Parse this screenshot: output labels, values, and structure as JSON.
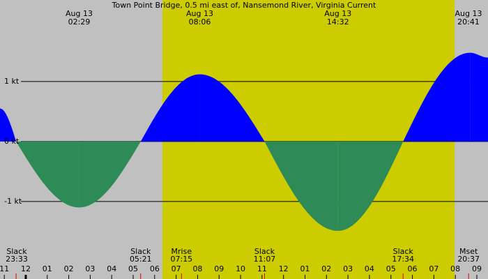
{
  "chart_data": {
    "type": "tide-current",
    "title": "Town Point Bridge, 0.5 mi east of, Nansemond River, Virginia Current",
    "x": [
      -1.2,
      -0.45,
      2.48,
      5.35,
      8.1,
      11.12,
      14.53,
      17.57,
      20.68,
      21.52
    ],
    "values": [
      0.55,
      0,
      -1.1,
      0,
      1.12,
      0,
      -1.49,
      0,
      1.48,
      1.4
    ],
    "flood_color": "#0000ff",
    "ebb_color": "#2e8b57",
    "background": "#c0c0c0",
    "daylight_color": "#cccc00",
    "daylight": [
      6.36,
      19.97
    ],
    "xlim": [
      -1.2,
      21.52
    ],
    "ylim": [
      -2.06,
      2.36
    ],
    "yticks": [
      {
        "value": 1,
        "label": "1 kt"
      },
      {
        "value": 0,
        "label": "0 kt"
      },
      {
        "value": -1,
        "label": "-1 kt"
      }
    ],
    "xticks": [
      {
        "value": -1,
        "label": "11"
      },
      {
        "value": 0,
        "label": "12"
      },
      {
        "value": 1,
        "label": "01"
      },
      {
        "value": 2,
        "label": "02"
      },
      {
        "value": 3,
        "label": "03"
      },
      {
        "value": 4,
        "label": "04"
      },
      {
        "value": 5,
        "label": "05"
      },
      {
        "value": 6,
        "label": "06"
      },
      {
        "value": 7,
        "label": "07"
      },
      {
        "value": 8,
        "label": "08"
      },
      {
        "value": 9,
        "label": "09"
      },
      {
        "value": 10,
        "label": "10"
      },
      {
        "value": 11,
        "label": "11"
      },
      {
        "value": 12,
        "label": "12"
      },
      {
        "value": 13,
        "label": "01"
      },
      {
        "value": 14,
        "label": "02"
      },
      {
        "value": 15,
        "label": "03"
      },
      {
        "value": 16,
        "label": "04"
      },
      {
        "value": 17,
        "label": "05"
      },
      {
        "value": 18,
        "label": "06"
      },
      {
        "value": 19,
        "label": "07"
      },
      {
        "value": 20,
        "label": "08"
      },
      {
        "value": 21,
        "label": "09"
      }
    ],
    "max_labels": [
      {
        "date": "Aug 13",
        "time": "02:29"
      },
      {
        "date": "Aug 13",
        "time": "08:06"
      },
      {
        "date": "Aug 13",
        "time": "14:32"
      },
      {
        "date": "Aug 13",
        "time": "20:41"
      }
    ],
    "events": [
      {
        "label": "Slack",
        "time": "23:33"
      },
      {
        "label": "Slack",
        "time": "05:21"
      },
      {
        "label": "Mrise",
        "time": "07:15"
      },
      {
        "label": "Slack",
        "time": "11:07"
      },
      {
        "label": "Slack",
        "time": "17:34"
      },
      {
        "label": "Mset",
        "time": "20:37"
      }
    ]
  }
}
